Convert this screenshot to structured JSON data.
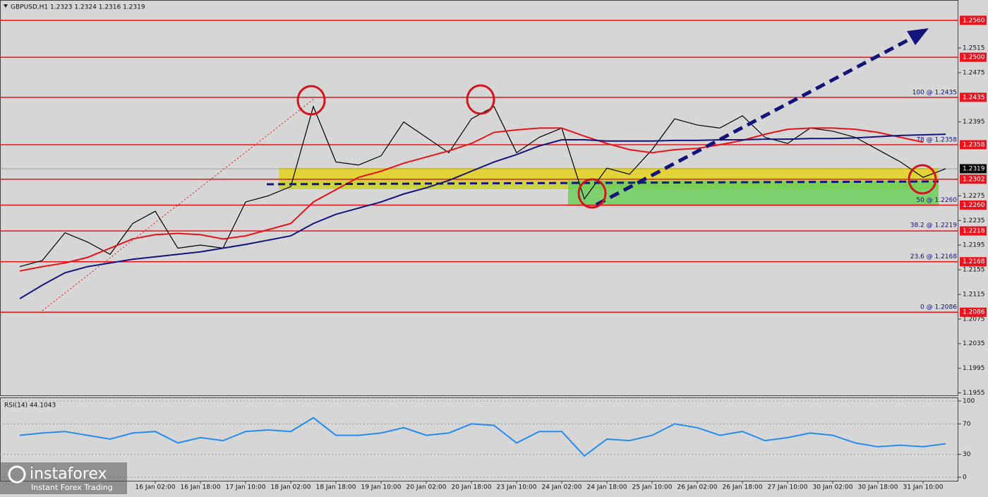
{
  "header": "GBPUSD,H1  1.2323 1.2324 1.2316 1.2319",
  "chart_data": [
    {
      "type": "line",
      "categories": [
        null,
        null,
        null,
        null,
        null,
        null,
        "16 Jan 02:00",
        null,
        "16 Jan 18:00",
        null,
        "17 Jan 10:00",
        null,
        "18 Jan 02:00",
        null,
        "18 Jan 18:00",
        null,
        "19 Jan 10:00",
        null,
        "20 Jan 02:00",
        null,
        "20 Jan 18:00",
        null,
        "23 Jan 10:00",
        null,
        "24 Jan 02:00",
        null,
        "24 Jan 18:00",
        null,
        "25 Jan 10:00",
        null,
        "26 Jan 02:00",
        null,
        "26 Jan 18:00",
        null,
        "27 Jan 10:00",
        null,
        "30 Jan 02:00",
        null,
        "30 Jan 18:00",
        null,
        "31 Jan 10:00",
        null
      ],
      "series": [
        {
          "color": "#000000",
          "values": [
            1.216,
            1.217,
            1.2215,
            1.22,
            1.218,
            1.223,
            1.225,
            1.219,
            1.2195,
            1.219,
            1.2265,
            1.2275,
            1.229,
            1.242,
            1.233,
            1.2325,
            1.234,
            1.2395,
            1.237,
            1.2345,
            1.24,
            1.242,
            1.2345,
            1.237,
            1.2385,
            1.227,
            1.232,
            1.231,
            1.235,
            1.24,
            1.239,
            1.2385,
            1.2405,
            1.237,
            1.236,
            1.2385,
            1.238,
            1.237,
            1.235,
            1.233,
            1.2305,
            1.2319
          ]
        },
        {
          "color": "#e8141e",
          "values": [
            1.2153,
            1.216,
            1.2166,
            1.2175,
            1.219,
            1.2205,
            1.2212,
            1.2214,
            1.2212,
            1.2205,
            1.221,
            1.222,
            1.223,
            1.2265,
            1.2285,
            1.2305,
            1.2315,
            1.2328,
            1.2338,
            1.2348,
            1.236,
            1.2378,
            1.2382,
            1.2385,
            1.2385,
            1.2372,
            1.236,
            1.235,
            1.2345,
            1.235,
            1.2352,
            1.2358,
            1.2365,
            1.2375,
            1.2383,
            1.2385,
            1.2385,
            1.2383,
            1.2378,
            1.237,
            1.2362,
            null
          ]
        },
        {
          "color": "#14147a",
          "values": [
            1.2108,
            1.213,
            1.215,
            1.216,
            1.2166,
            1.2172,
            1.2176,
            1.218,
            1.2184,
            1.219,
            1.2196,
            1.2203,
            1.221,
            1.223,
            1.2245,
            1.2255,
            1.2265,
            1.2278,
            1.2288,
            1.23,
            1.2315,
            1.233,
            1.2342,
            1.2356,
            1.2366,
            1.2366,
            1.2364,
            1.2364,
            1.2364,
            1.2365,
            1.2365,
            1.2366,
            1.2366,
            1.2367,
            1.2367,
            1.2368,
            1.2368,
            1.2369,
            1.2371,
            1.2373,
            1.2374,
            1.2375
          ]
        }
      ],
      "ylim": [
        1.1951,
        1.2593
      ],
      "yticks": [
        1.2515,
        1.2475,
        1.2395,
        1.2275,
        1.2235,
        1.2195,
        1.2155,
        1.2115,
        1.2075,
        1.2035,
        1.1995,
        1.1955
      ],
      "levels": [
        {
          "value": 1.256,
          "label": "1.2560"
        },
        {
          "value": 1.25,
          "label": "1.2500"
        },
        {
          "value": 1.2435,
          "label": "1.2435"
        },
        {
          "value": 1.2358,
          "label": "1.2358"
        },
        {
          "value": 1.2302,
          "label": "1.2302"
        },
        {
          "value": 1.226,
          "label": "1.2260"
        },
        {
          "value": 1.2218,
          "label": "1.2218"
        },
        {
          "value": 1.2168,
          "label": "1.2168"
        },
        {
          "value": 1.2086,
          "label": "1.2086"
        }
      ],
      "level_color": "#e8141e",
      "fib_labels": [
        {
          "value": 1.2435,
          "label": "100 @ 1.2435"
        },
        {
          "value": 1.2358,
          "label": "78 @ 1.2358"
        },
        {
          "value": 1.226,
          "label": "50 @ 1.2260"
        },
        {
          "value": 1.2219,
          "label": "38.2 @ 1.2219"
        },
        {
          "value": 1.2168,
          "label": "23.6 @ 1.2168"
        },
        {
          "value": 1.2086,
          "label": "0 @ 1.2086"
        }
      ],
      "current_price": 1.2319
    },
    {
      "type": "line",
      "title": "RSI(14) 44.1043",
      "series": [
        {
          "color": "#2a8cf0",
          "values": [
            55,
            58,
            60,
            55,
            50,
            58,
            60,
            45,
            52,
            48,
            60,
            62,
            60,
            78,
            55,
            55,
            58,
            65,
            55,
            58,
            70,
            68,
            45,
            60,
            60,
            28,
            50,
            48,
            55,
            70,
            65,
            55,
            60,
            48,
            52,
            58,
            55,
            45,
            40,
            42,
            40,
            44
          ]
        }
      ],
      "ylim": [
        0,
        100
      ],
      "yticks": [
        100,
        70,
        30,
        0
      ]
    }
  ],
  "logo": {
    "name": "instaforex",
    "tagline": "Instant Forex Trading"
  }
}
